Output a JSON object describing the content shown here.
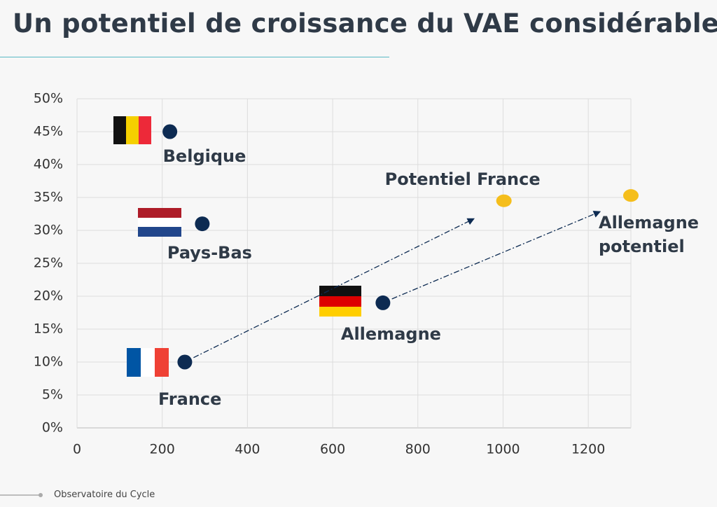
{
  "header": {
    "title": "Un potentiel de croissance du VAE considérable"
  },
  "chart_data": {
    "type": "scatter",
    "xlim": [
      0,
      1300
    ],
    "xticks": [
      0,
      200,
      400,
      600,
      800,
      1000,
      1200
    ],
    "ylim": [
      0,
      50
    ],
    "yticks": [
      {
        "value": 0,
        "label": "0%"
      },
      {
        "value": 5,
        "label": "5%"
      },
      {
        "value": 10,
        "label": "10%"
      },
      {
        "value": 15,
        "label": "15%"
      },
      {
        "value": 20,
        "label": "20%"
      },
      {
        "value": 25,
        "label": "25%"
      },
      {
        "value": 30,
        "label": "30%"
      },
      {
        "value": 35,
        "label": "35%"
      },
      {
        "value": 40,
        "label": "40%"
      },
      {
        "value": 45,
        "label": "45%"
      },
      {
        "value": 50,
        "label": "50%"
      }
    ],
    "grid": true,
    "points": [
      {
        "label": "Belgique",
        "x": 218,
        "y": 45,
        "color": "#0d2b52"
      },
      {
        "label": "Pays-Bas",
        "x": 294,
        "y": 31,
        "color": "#0d2b52"
      },
      {
        "label": "France",
        "x": 253,
        "y": 10,
        "color": "#0d2b52"
      },
      {
        "label": "Allemagne",
        "x": 718,
        "y": 19,
        "color": "#0d2b52"
      },
      {
        "label": "Potentiel France",
        "x": 1002,
        "y": 34.5,
        "color": "#f5be1c"
      },
      {
        "label": "Allemagne potentiel",
        "x": 1300,
        "y": 35.3,
        "color": "#f5be1c"
      }
    ]
  },
  "footer": {
    "source": "Observatoire du Cycle"
  }
}
